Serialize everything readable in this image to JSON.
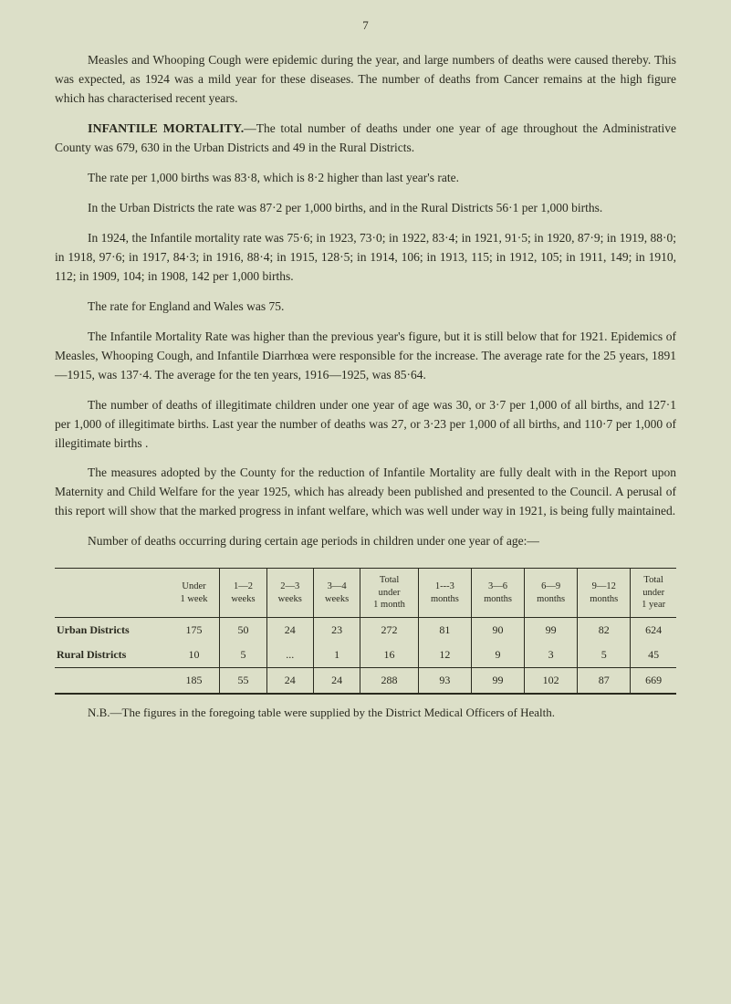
{
  "page_number": "7",
  "paragraphs": {
    "p1": "Measles and Whooping Cough were epidemic during the year, and large numbers of deaths were caused thereby. This was expected, as 1924 was a mild year for these diseases. The number of deaths from Cancer remains at the high figure which has characterised recent years.",
    "p2_heading": "INFANTILE MORTALITY.",
    "p2": "—The total number of deaths under one year of age throughout the Administrative County was 679, 630 in the Urban Districts and 49 in the Rural Districts.",
    "p3": "The rate per 1,000 births was 83·8, which is 8·2 higher than last year's rate.",
    "p4": "In the Urban Districts the rate was 87·2 per 1,000 births, and in the Rural Districts 56·1 per 1,000 births.",
    "p5": "In 1924, the Infantile mortality rate was 75·6; in 1923, 73·0; in 1922, 83·4; in 1921, 91·5; in 1920, 87·9; in 1919, 88·0; in 1918, 97·6; in 1917, 84·3; in 1916, 88·4; in 1915, 128·5; in 1914, 106; in 1913, 115; in 1912, 105; in 1911, 149; in 1910, 112; in 1909, 104; in 1908, 142 per 1,000 births.",
    "p6": "The rate for England and Wales was 75.",
    "p7": "The Infantile Mortality Rate was higher than the previous year's figure, but it is still below that for 1921. Epidemics of Measles, Whooping Cough, and Infantile Diarrhœa were responsible for the increase. The average rate for the 25 years, 1891—1915, was 137·4. The average for the ten years, 1916—1925, was 85·64.",
    "p8": "The number of deaths of illegitimate children under one year of age was 30, or 3·7 per 1,000 of all births, and 127·1 per 1,000 of illegitimate births. Last year the number of deaths was 27, or 3·23 per 1,000 of all births, and 110·7 per 1,000 of illegitimate births .",
    "p9": "The measures adopted by the County for the reduction of Infantile Mortality are fully dealt with in the Report upon Maternity and Child Welfare for the year 1925, which has already been published and presented to the Council. A perusal of this report will show that the marked progress in infant welfare, which was well under way in 1921, is being fully maintained.",
    "p10": "Number of deaths occurring during certain age periods in children under one year of age:—"
  },
  "table": {
    "columns": [
      "",
      "Under\n1 week",
      "1—2\nweeks",
      "2—3\nweeks",
      "3—4\nweeks",
      "Total\nunder\n1 month",
      "1---3\nmonths",
      "3—6\nmonths",
      "6—9\nmonths",
      "9—12\nmonths",
      "Total\nunder\n1 year"
    ],
    "rows": [
      {
        "label": "Urban Districts",
        "cells": [
          "175",
          "50",
          "24",
          "23",
          "272",
          "81",
          "90",
          "99",
          "82",
          "624"
        ]
      },
      {
        "label": "Rural Districts",
        "cells": [
          "10",
          "5",
          "...",
          "1",
          "16",
          "12",
          "9",
          "3",
          "5",
          "45"
        ]
      }
    ],
    "sum": {
      "label": "",
      "cells": [
        "185",
        "55",
        "24",
        "24",
        "288",
        "93",
        "99",
        "102",
        "87",
        "669"
      ]
    }
  },
  "footnote": "N.B.—The figures in the foregoing table were supplied by the District Medical Officers of Health."
}
